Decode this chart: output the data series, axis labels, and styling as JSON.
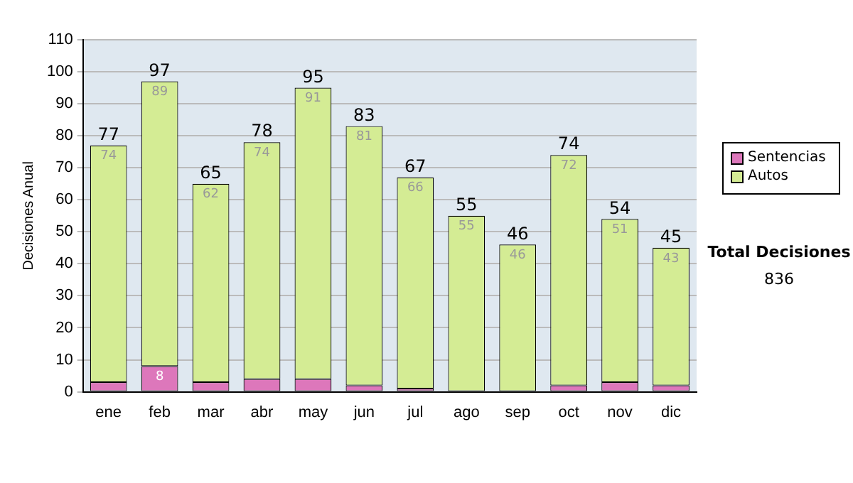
{
  "chart_data": {
    "type": "bar",
    "stacked": true,
    "ylabel": "Decisiones Anual",
    "categories": [
      "ene",
      "feb",
      "mar",
      "abr",
      "may",
      "jun",
      "jul",
      "ago",
      "sep",
      "oct",
      "nov",
      "dic"
    ],
    "series": [
      {
        "name": "Sentencias",
        "color": "#dd77bb",
        "values": [
          3,
          8,
          3,
          4,
          4,
          2,
          1,
          0,
          0,
          2,
          3,
          2
        ],
        "value_labels": [
          null,
          "8",
          null,
          null,
          null,
          null,
          null,
          null,
          null,
          null,
          null,
          null
        ]
      },
      {
        "name": "Autos",
        "color": "#d4ec94",
        "values": [
          74,
          89,
          62,
          74,
          91,
          81,
          66,
          55,
          46,
          72,
          51,
          43
        ],
        "value_labels": [
          "74",
          "89",
          "62",
          "74",
          "91",
          "81",
          "66",
          "55",
          "46",
          "72",
          "51",
          "43"
        ]
      }
    ],
    "totals": [
      "77",
      "97",
      "65",
      "78",
      "95",
      "83",
      "67",
      "55",
      "46",
      "74",
      "54",
      "45"
    ],
    "ylim": [
      0,
      110
    ],
    "yticks": [
      0,
      10,
      20,
      30,
      40,
      50,
      60,
      70,
      80,
      90,
      100,
      110
    ],
    "grid": "y",
    "legend": "right",
    "annotations": [
      "Total Decisiones",
      "836"
    ]
  }
}
